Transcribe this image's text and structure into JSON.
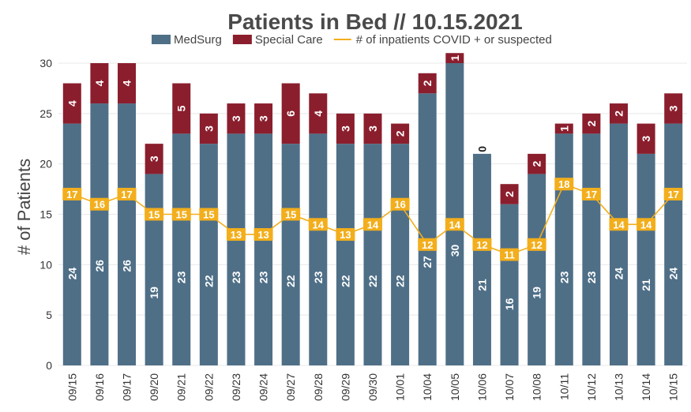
{
  "chart_data": {
    "type": "bar",
    "stacked": true,
    "title": "Patients in Bed // 10.15.2021",
    "ylabel": "# of Patients",
    "xlabel": "",
    "ylim": [
      0,
      30
    ],
    "yticks": [
      0,
      5,
      10,
      15,
      20,
      25,
      30
    ],
    "grid": true,
    "legend_position": "top",
    "categories": [
      "09/15",
      "09/16",
      "09/17",
      "09/20",
      "09/21",
      "09/22",
      "09/23",
      "09/24",
      "09/27",
      "09/28",
      "09/29",
      "09/30",
      "10/01",
      "10/04",
      "10/05",
      "10/06",
      "10/07",
      "10/08",
      "10/11",
      "10/12",
      "10/13",
      "10/14",
      "10/15"
    ],
    "series": [
      {
        "name": "MedSurg",
        "kind": "bar",
        "color": "#4f6f87",
        "values": [
          24,
          26,
          26,
          19,
          23,
          22,
          23,
          23,
          22,
          23,
          22,
          22,
          22,
          27,
          30,
          21,
          16,
          19,
          23,
          23,
          24,
          21,
          24
        ]
      },
      {
        "name": "Special Care",
        "kind": "bar",
        "color": "#8b1e2d",
        "values": [
          4,
          4,
          4,
          3,
          5,
          3,
          3,
          3,
          6,
          4,
          3,
          3,
          2,
          2,
          1,
          0,
          2,
          2,
          1,
          2,
          2,
          3,
          3
        ]
      },
      {
        "name": "# of inpatients COVID + or suspected",
        "kind": "line",
        "color": "#f2ae1c",
        "values": [
          17,
          16,
          17,
          15,
          15,
          15,
          13,
          13,
          15,
          14,
          13,
          14,
          16,
          12,
          14,
          12,
          11,
          12,
          18,
          17,
          14,
          14,
          17
        ]
      }
    ]
  }
}
